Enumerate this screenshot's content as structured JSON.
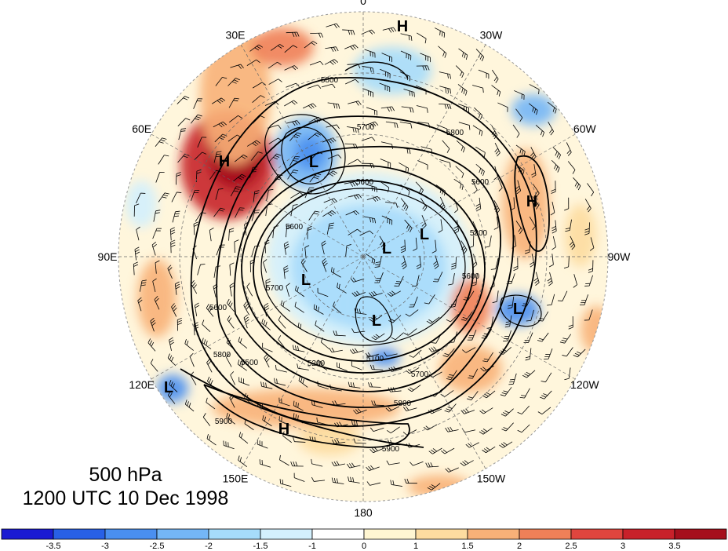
{
  "map": {
    "longitude_labels": [
      "0",
      "30W",
      "60W",
      "90W",
      "120W",
      "150W",
      "180",
      "150E",
      "120E",
      "90E",
      "60E",
      "30E"
    ],
    "pressure_centers": [
      {
        "type": "H",
        "lon_label": "near 0"
      },
      {
        "type": "H",
        "lon_label": "near 60E"
      },
      {
        "type": "L",
        "lon_label": "near 30E"
      },
      {
        "type": "H",
        "lon_label": "near 60W"
      },
      {
        "type": "L",
        "lon_label": "near 90W"
      },
      {
        "type": "L",
        "lon_label": "pole"
      },
      {
        "type": "L",
        "lon_label": "near 90E"
      },
      {
        "type": "L",
        "lon_label": "near 180"
      },
      {
        "type": "L",
        "lon_label": "near 120W"
      },
      {
        "type": "L",
        "lon_label": "near 120E"
      },
      {
        "type": "H",
        "lon_label": "near 150E"
      }
    ],
    "contour_labels": [
      "5800",
      "5700",
      "5800",
      "5600",
      "5600",
      "5300",
      "5600",
      "5700",
      "5600",
      "5200",
      "5100",
      "5800",
      "5700",
      "5800",
      "5900",
      "5900",
      "5500",
      "5600"
    ]
  },
  "caption": {
    "level": "500 hPa",
    "time": "1200 UTC 10 Dec 1998"
  },
  "colorbar": {
    "ticks": [
      "-3.5",
      "-3",
      "-2.5",
      "-2",
      "-1.5",
      "-1",
      "0",
      "1",
      "1.5",
      "2",
      "2.5",
      "3",
      "3.5"
    ],
    "colors": [
      "#1a1ad2",
      "#2860e6",
      "#4a8ff0",
      "#74b6f6",
      "#a6dcfb",
      "#d3f0fd",
      "#ffffff",
      "#fff6d2",
      "#fddca0",
      "#f8b178",
      "#ef8058",
      "#e0453e",
      "#c8212a",
      "#a50f1c"
    ]
  }
}
